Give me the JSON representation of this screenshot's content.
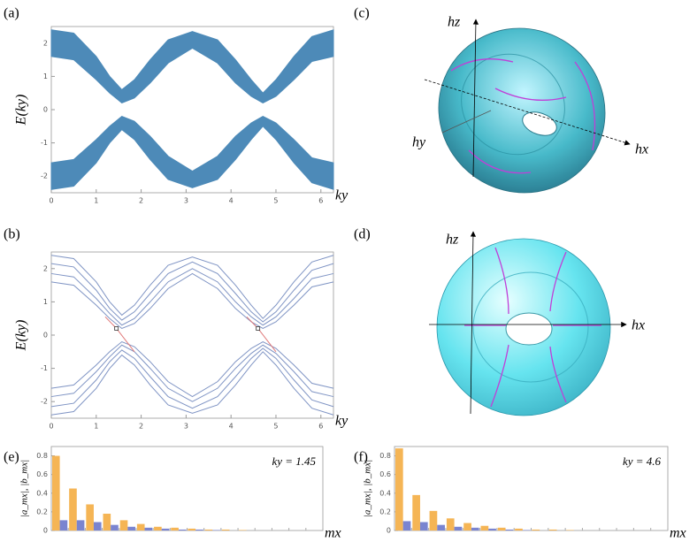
{
  "panel_labels": [
    "(a)",
    "(b)",
    "(c)",
    "(d)",
    "(e)",
    "(f)"
  ],
  "torus_c": {
    "labels": [
      "hz",
      "hy",
      "hx"
    ]
  },
  "torus_d": {
    "labels": [
      "hz",
      "hx"
    ]
  },
  "chart_data": [
    {
      "type": "band",
      "y_label": "E(ky)",
      "x_label": "ky",
      "x": [
        0,
        0.5,
        1,
        1.3,
        1.57,
        1.85,
        2.2,
        2.6,
        3.14,
        3.7,
        4.1,
        4.45,
        4.71,
        5,
        5.4,
        5.8,
        6.28
      ],
      "series": [
        {
          "color": "#4d8ab8",
          "upper": [
            2.4,
            2.3,
            1.6,
            1.0,
            0.6,
            0.9,
            1.5,
            2.1,
            2.35,
            2.1,
            1.5,
            0.9,
            0.5,
            0.9,
            1.6,
            2.2,
            2.4
          ],
          "lower": [
            1.6,
            1.5,
            0.9,
            0.5,
            0.2,
            0.35,
            0.8,
            1.4,
            1.85,
            1.4,
            0.8,
            0.4,
            0.2,
            0.4,
            0.9,
            1.45,
            1.6
          ]
        },
        {
          "color": "#4d8ab8",
          "upper": [
            -1.6,
            -1.5,
            -0.9,
            -0.5,
            -0.2,
            -0.35,
            -0.8,
            -1.4,
            -1.85,
            -1.4,
            -0.8,
            -0.4,
            -0.2,
            -0.4,
            -0.9,
            -1.45,
            -1.6
          ],
          "lower": [
            -2.4,
            -2.3,
            -1.6,
            -1.0,
            -0.6,
            -0.9,
            -1.5,
            -2.1,
            -2.35,
            -2.1,
            -1.5,
            -0.9,
            -0.5,
            -0.9,
            -1.6,
            -2.2,
            -2.4
          ]
        }
      ],
      "xlim": [
        0,
        6.28
      ],
      "ylim": [
        -2.5,
        2.5
      ],
      "xticks": [
        0,
        1,
        2,
        3,
        4,
        5,
        6
      ],
      "yticks": [
        -2,
        -1,
        0,
        1,
        2
      ]
    },
    {
      "type": "line",
      "y_label": "E(ky)",
      "x_label": "ky",
      "x": [
        0,
        0.5,
        1,
        1.3,
        1.57,
        1.85,
        2.2,
        2.6,
        3.14,
        3.7,
        4.1,
        4.45,
        4.71,
        5,
        5.4,
        5.8,
        6.28
      ],
      "series": [
        {
          "color": "#7f94c4",
          "values": [
            2.4,
            2.3,
            1.6,
            1.0,
            0.6,
            0.9,
            1.5,
            2.1,
            2.35,
            2.1,
            1.5,
            0.9,
            0.5,
            0.9,
            1.6,
            2.2,
            2.4
          ]
        },
        {
          "color": "#7f94c4",
          "values": [
            2.15,
            2.05,
            1.35,
            0.8,
            0.45,
            0.7,
            1.25,
            1.85,
            2.2,
            1.85,
            1.25,
            0.7,
            0.4,
            0.7,
            1.35,
            1.95,
            2.15
          ]
        },
        {
          "color": "#7f94c4",
          "values": [
            1.85,
            1.75,
            1.1,
            0.65,
            0.3,
            0.5,
            1.0,
            1.6,
            2.0,
            1.6,
            1.0,
            0.55,
            0.3,
            0.55,
            1.1,
            1.7,
            1.85
          ]
        },
        {
          "color": "#7f94c4",
          "values": [
            1.6,
            1.5,
            0.9,
            0.5,
            0.2,
            0.35,
            0.8,
            1.4,
            1.85,
            1.4,
            0.8,
            0.4,
            0.2,
            0.4,
            0.9,
            1.45,
            1.6
          ]
        },
        {
          "color": "#7f94c4",
          "values": [
            -1.6,
            -1.5,
            -0.9,
            -0.5,
            -0.2,
            -0.35,
            -0.8,
            -1.4,
            -1.85,
            -1.4,
            -0.8,
            -0.4,
            -0.2,
            -0.4,
            -0.9,
            -1.45,
            -1.6
          ]
        },
        {
          "color": "#7f94c4",
          "values": [
            -1.85,
            -1.75,
            -1.1,
            -0.65,
            -0.3,
            -0.5,
            -1.0,
            -1.6,
            -2.0,
            -1.6,
            -1.0,
            -0.55,
            -0.3,
            -0.55,
            -1.1,
            -1.7,
            -1.85
          ]
        },
        {
          "color": "#7f94c4",
          "values": [
            -2.15,
            -2.05,
            -1.35,
            -0.8,
            -0.45,
            -0.7,
            -1.25,
            -1.85,
            -2.2,
            -1.85,
            -1.25,
            -0.7,
            -0.4,
            -0.7,
            -1.35,
            -1.95,
            -2.15
          ]
        },
        {
          "color": "#7f94c4",
          "values": [
            -2.4,
            -2.3,
            -1.6,
            -1.0,
            -0.6,
            -0.9,
            -1.5,
            -2.1,
            -2.35,
            -2.1,
            -1.5,
            -0.9,
            -0.5,
            -0.9,
            -1.6,
            -2.2,
            -2.4
          ]
        },
        {
          "color": "#e07a7a",
          "x": [
            1.2,
            1.45,
            1.85
          ],
          "values": [
            0.55,
            0.2,
            -0.5
          ]
        },
        {
          "color": "#e07a7a",
          "x": [
            4.35,
            4.6,
            5.0
          ],
          "values": [
            0.55,
            0.2,
            -0.5
          ]
        }
      ],
      "points": {
        "x": [
          1.45,
          4.6
        ],
        "values": [
          0.2,
          0.2
        ]
      },
      "xlim": [
        0,
        6.28
      ],
      "ylim": [
        -2.5,
        2.5
      ],
      "xticks": [
        0,
        1,
        2,
        3,
        4,
        5,
        6
      ],
      "yticks": [
        -2,
        -1,
        0,
        1,
        2
      ]
    },
    {
      "type": "bar",
      "y_label": "|a_mx|, |b_mx|",
      "x_label": "mx",
      "annotation": "ky = 1.45",
      "categories": [
        null,
        null,
        null,
        null,
        null,
        null,
        null,
        null,
        null,
        null,
        null,
        null,
        null,
        null,
        null,
        null
      ],
      "series": [
        {
          "color": "#f5b555",
          "values": [
            0.8,
            0.45,
            0.28,
            0.18,
            0.11,
            0.07,
            0.04,
            0.03,
            0.02,
            0.01,
            0.01,
            0.005,
            0,
            0,
            0,
            0
          ]
        },
        {
          "color": "#7a84d0",
          "values": [
            0.11,
            0.11,
            0.09,
            0.06,
            0.04,
            0.03,
            0.02,
            0.01,
            0.01,
            0.005,
            0,
            0,
            0,
            0,
            0,
            0
          ]
        }
      ],
      "ylim": [
        0,
        0.9
      ],
      "yticks": [
        0,
        0.2,
        0.4,
        0.6,
        0.8
      ]
    },
    {
      "type": "bar",
      "y_label": "|a_mx|, |b_mx|",
      "x_label": "mx",
      "annotation": "ky = 4.6",
      "categories": [
        null,
        null,
        null,
        null,
        null,
        null,
        null,
        null,
        null,
        null,
        null,
        null,
        null,
        null,
        null,
        null
      ],
      "series": [
        {
          "color": "#f5b555",
          "values": [
            0.88,
            0.38,
            0.21,
            0.13,
            0.08,
            0.05,
            0.03,
            0.02,
            0.01,
            0.01,
            0.005,
            0,
            0,
            0,
            0,
            0
          ]
        },
        {
          "color": "#7a84d0",
          "values": [
            0.1,
            0.09,
            0.06,
            0.04,
            0.03,
            0.02,
            0.01,
            0.005,
            0,
            0,
            0,
            0,
            0,
            0,
            0,
            0
          ]
        }
      ],
      "ylim": [
        0,
        0.9
      ],
      "yticks": [
        0,
        0.2,
        0.4,
        0.6,
        0.8
      ]
    }
  ]
}
